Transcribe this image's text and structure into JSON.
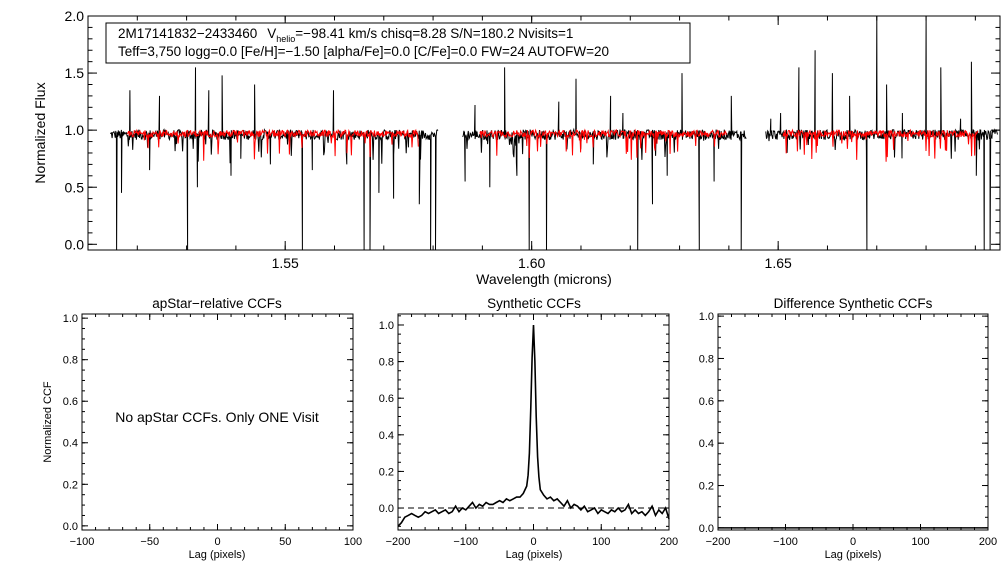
{
  "chart_data": [
    {
      "type": "line",
      "panel": "spectrum",
      "title": "",
      "xlabel": "Wavelength (microns)",
      "ylabel": "Normalized Flux",
      "xlim": [
        1.51,
        1.695
      ],
      "ylim": [
        -0.05,
        2.0
      ],
      "xticks": [
        1.55,
        1.6,
        1.65
      ],
      "xtick_labels": [
        "1.55",
        "1.60",
        "1.65"
      ],
      "yticks": [
        0.0,
        0.5,
        1.0,
        1.5,
        2.0
      ],
      "ytick_labels": [
        "0.0",
        "0.5",
        "1.0",
        "1.5",
        "2.0"
      ],
      "chips": [
        [
          1.5145,
          1.581
        ],
        [
          1.586,
          1.6435
        ],
        [
          1.6475,
          1.6945
        ]
      ],
      "annotation": {
        "line1_id": "2M17141832−2433460",
        "line1_v": "V",
        "line1_sub": "helio",
        "line1_rest": "=−98.41 km/s  chisq=8.28  S/N=180.2  Nvisits=1",
        "line2": "Teff=3,750 logg=0.0 [Fe/H]=−1.50 [alpha/Fe]=0.0 [C/Fe]=0.0 FW=24 AUTOFW=20"
      },
      "series": [
        {
          "color": "#000000",
          "baseline": 0.96,
          "features": [
            [
              1.5158,
              -0.05
            ],
            [
              1.5168,
              0.45
            ],
            [
              1.5185,
              1.35
            ],
            [
              1.5225,
              0.65
            ],
            [
              1.5245,
              1.3
            ],
            [
              1.5302,
              -0.05
            ],
            [
              1.5318,
              1.55
            ],
            [
              1.5322,
              0.5
            ],
            [
              1.5345,
              1.35
            ],
            [
              1.5372,
              1.48
            ],
            [
              1.539,
              0.6
            ],
            [
              1.541,
              0.75
            ],
            [
              1.5438,
              1.4
            ],
            [
              1.547,
              0.7
            ],
            [
              1.5535,
              -0.05
            ],
            [
              1.5555,
              0.65
            ],
            [
              1.5598,
              1.35
            ],
            [
              1.5625,
              0.7
            ],
            [
              1.566,
              -0.05
            ],
            [
              1.5672,
              -0.05
            ],
            [
              1.569,
              0.45
            ],
            [
              1.572,
              0.4
            ],
            [
              1.575,
              0.85
            ],
            [
              1.5772,
              0.35
            ],
            [
              1.5795,
              -0.05
            ],
            [
              1.5805,
              -0.05
            ],
            [
              1.5865,
              0.55
            ],
            [
              1.5885,
              1.22
            ],
            [
              1.5915,
              0.5
            ],
            [
              1.5945,
              1.55
            ],
            [
              1.597,
              0.6
            ],
            [
              1.5995,
              -0.05
            ],
            [
              1.603,
              -0.05
            ],
            [
              1.6055,
              1.25
            ],
            [
              1.609,
              1.45
            ],
            [
              1.6125,
              0.7
            ],
            [
              1.616,
              1.3
            ],
            [
              1.6185,
              1.15
            ],
            [
              1.6215,
              -0.05
            ],
            [
              1.6245,
              0.35
            ],
            [
              1.6275,
              0.6
            ],
            [
              1.6305,
              1.5
            ],
            [
              1.634,
              -0.05
            ],
            [
              1.637,
              0.55
            ],
            [
              1.6405,
              1.3
            ],
            [
              1.6425,
              -0.05
            ],
            [
              1.6485,
              1.1
            ],
            [
              1.6505,
              1.15
            ],
            [
              1.6542,
              1.55
            ],
            [
              1.6575,
              1.7
            ],
            [
              1.661,
              1.5
            ],
            [
              1.6645,
              1.3
            ],
            [
              1.668,
              -0.05
            ],
            [
              1.67,
              2.0
            ],
            [
              1.672,
              1.4
            ],
            [
              1.6752,
              1.15
            ],
            [
              1.68,
              2.0
            ],
            [
              1.683,
              1.55
            ],
            [
              1.687,
              1.1
            ],
            [
              1.6892,
              1.6
            ],
            [
              1.6902,
              0.6
            ],
            [
              1.6918,
              -0.05
            ],
            [
              1.693,
              -0.05
            ]
          ]
        },
        {
          "color": "#ff0000",
          "baseline": 0.97
        }
      ]
    },
    {
      "type": "line",
      "panel": "apstar-ccf",
      "title": "apStar−relative CCFs",
      "xlabel": "Lag (pixels)",
      "ylabel": "Normalized CCF",
      "xlim": [
        -100,
        100
      ],
      "ylim": [
        -0.02,
        1.02
      ],
      "xticks": [
        -100,
        -50,
        0,
        50,
        100
      ],
      "xtick_labels": [
        "−100",
        "−50",
        "0",
        "50",
        "100"
      ],
      "yticks": [
        0.0,
        0.2,
        0.4,
        0.6,
        0.8,
        1.0
      ],
      "ytick_labels": [
        "0.0",
        "0.2",
        "0.4",
        "0.6",
        "0.8",
        "1.0"
      ],
      "annotation": "No apStar CCFs.  Only ONE Visit",
      "series": []
    },
    {
      "type": "line",
      "panel": "synthetic-ccf",
      "title": "Synthetic CCFs",
      "xlabel": "Lag (pixels)",
      "ylabel": "",
      "xlim": [
        -200,
        200
      ],
      "ylim": [
        -0.12,
        1.06
      ],
      "xticks": [
        -200,
        -100,
        0,
        100,
        200
      ],
      "xtick_labels": [
        "−200",
        "−100",
        "0",
        "100",
        "200"
      ],
      "yticks": [
        0.0,
        0.2,
        0.4,
        0.6,
        0.8,
        1.0
      ],
      "ytick_labels": [
        "0.0",
        "0.2",
        "0.4",
        "0.6",
        "0.8",
        "1.0"
      ],
      "zero_line": 0.0,
      "series": [
        {
          "color": "#000000",
          "x": [
            -200,
            -195,
            -190,
            -185,
            -180,
            -175,
            -170,
            -165,
            -160,
            -155,
            -150,
            -145,
            -140,
            -135,
            -130,
            -125,
            -120,
            -115,
            -110,
            -105,
            -100,
            -95,
            -90,
            -85,
            -80,
            -75,
            -70,
            -65,
            -60,
            -55,
            -50,
            -45,
            -40,
            -35,
            -30,
            -25,
            -20,
            -15,
            -10,
            -8,
            -6,
            -4,
            -2,
            0,
            2,
            4,
            6,
            8,
            10,
            15,
            20,
            25,
            30,
            35,
            40,
            45,
            50,
            55,
            60,
            65,
            70,
            75,
            80,
            85,
            90,
            95,
            100,
            105,
            110,
            115,
            120,
            125,
            130,
            135,
            140,
            145,
            150,
            155,
            160,
            165,
            170,
            175,
            180,
            185,
            190,
            195,
            200
          ],
          "y": [
            -0.1,
            -0.08,
            -0.05,
            -0.04,
            -0.03,
            -0.04,
            -0.05,
            -0.04,
            -0.02,
            -0.03,
            -0.02,
            -0.01,
            -0.03,
            -0.02,
            -0.01,
            -0.03,
            -0.02,
            0.01,
            -0.02,
            0.0,
            -0.01,
            0.01,
            0.03,
            0.0,
            0.02,
            0.01,
            0.03,
            0.02,
            0.02,
            0.03,
            0.04,
            0.03,
            0.05,
            0.04,
            0.05,
            0.06,
            0.06,
            0.08,
            0.12,
            0.18,
            0.3,
            0.55,
            0.82,
            1.0,
            0.8,
            0.5,
            0.28,
            0.17,
            0.1,
            0.07,
            0.05,
            0.06,
            0.04,
            0.05,
            0.03,
            0.01,
            0.04,
            0.0,
            0.02,
            0.01,
            -0.01,
            0.01,
            -0.02,
            -0.01,
            0.0,
            -0.03,
            -0.01,
            -0.02,
            -0.03,
            -0.01,
            -0.02,
            0.0,
            -0.02,
            -0.01,
            0.02,
            -0.03,
            -0.01,
            -0.03,
            -0.02,
            -0.04,
            -0.02,
            0.01,
            -0.04,
            -0.01,
            -0.03,
            0.0,
            -0.06
          ]
        }
      ]
    },
    {
      "type": "line",
      "panel": "difference-ccf",
      "title": "Difference Synthetic CCFs",
      "xlabel": "Lag (pixels)",
      "ylabel": "",
      "xlim": [
        -200,
        200
      ],
      "ylim": [
        -0.01,
        1.01
      ],
      "xticks": [
        -200,
        -100,
        0,
        100,
        200
      ],
      "xtick_labels": [
        "−200",
        "−100",
        "0",
        "100",
        "200"
      ],
      "yticks": [
        0.0,
        0.2,
        0.4,
        0.6,
        0.8,
        1.0
      ],
      "ytick_labels": [
        "0.0",
        "0.2",
        "0.4",
        "0.6",
        "0.8",
        "1.0"
      ],
      "series": [
        {
          "color": "#000000",
          "x": [
            -200,
            200
          ],
          "y": [
            0.0,
            0.0
          ]
        }
      ]
    }
  ]
}
